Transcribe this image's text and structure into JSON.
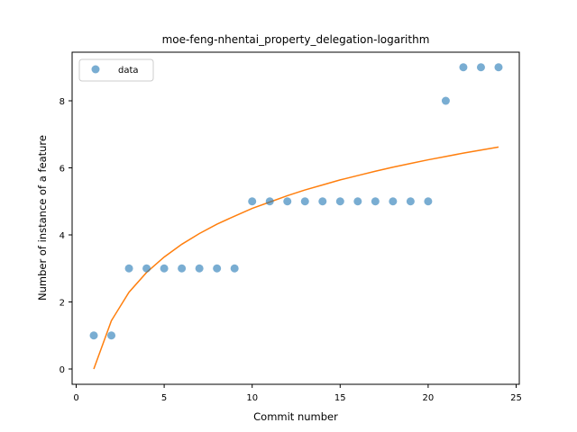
{
  "chart_data": {
    "type": "scatter",
    "title": "moe-feng-nhentai_property_delegation-logarithm",
    "xlabel": "Commit number",
    "ylabel": "Number of instance of a feature",
    "xlim": [
      0,
      25
    ],
    "ylim": [
      0,
      9.5
    ],
    "xticks": [
      0,
      5,
      10,
      15,
      20,
      25
    ],
    "yticks": [
      0,
      2,
      4,
      6,
      8
    ],
    "grid": false,
    "legend_position": "top-left",
    "series": [
      {
        "name": "data",
        "kind": "scatter",
        "color": "#1f77b4",
        "x": [
          1,
          2,
          3,
          4,
          5,
          6,
          7,
          8,
          9,
          10,
          11,
          12,
          13,
          14,
          15,
          16,
          17,
          18,
          19,
          20,
          21,
          22,
          23,
          24
        ],
        "y": [
          1,
          1,
          3,
          3,
          3,
          3,
          3,
          3,
          3,
          5,
          5,
          5,
          5,
          5,
          5,
          5,
          5,
          5,
          5,
          5,
          8,
          9,
          9,
          9
        ]
      },
      {
        "kind": "line",
        "color": "#ff7f0e",
        "x": [
          1,
          2,
          3,
          4,
          5,
          6,
          7,
          8,
          9,
          10,
          11,
          12,
          13,
          14,
          15,
          16,
          17,
          18,
          19,
          20,
          21,
          22,
          23,
          24
        ],
        "y": [
          0,
          1.44,
          2.29,
          2.88,
          3.34,
          3.72,
          4.04,
          4.32,
          4.56,
          4.79,
          4.98,
          5.17,
          5.34,
          5.49,
          5.64,
          5.77,
          5.9,
          6.02,
          6.13,
          6.24,
          6.34,
          6.44,
          6.53,
          6.62
        ]
      }
    ]
  }
}
